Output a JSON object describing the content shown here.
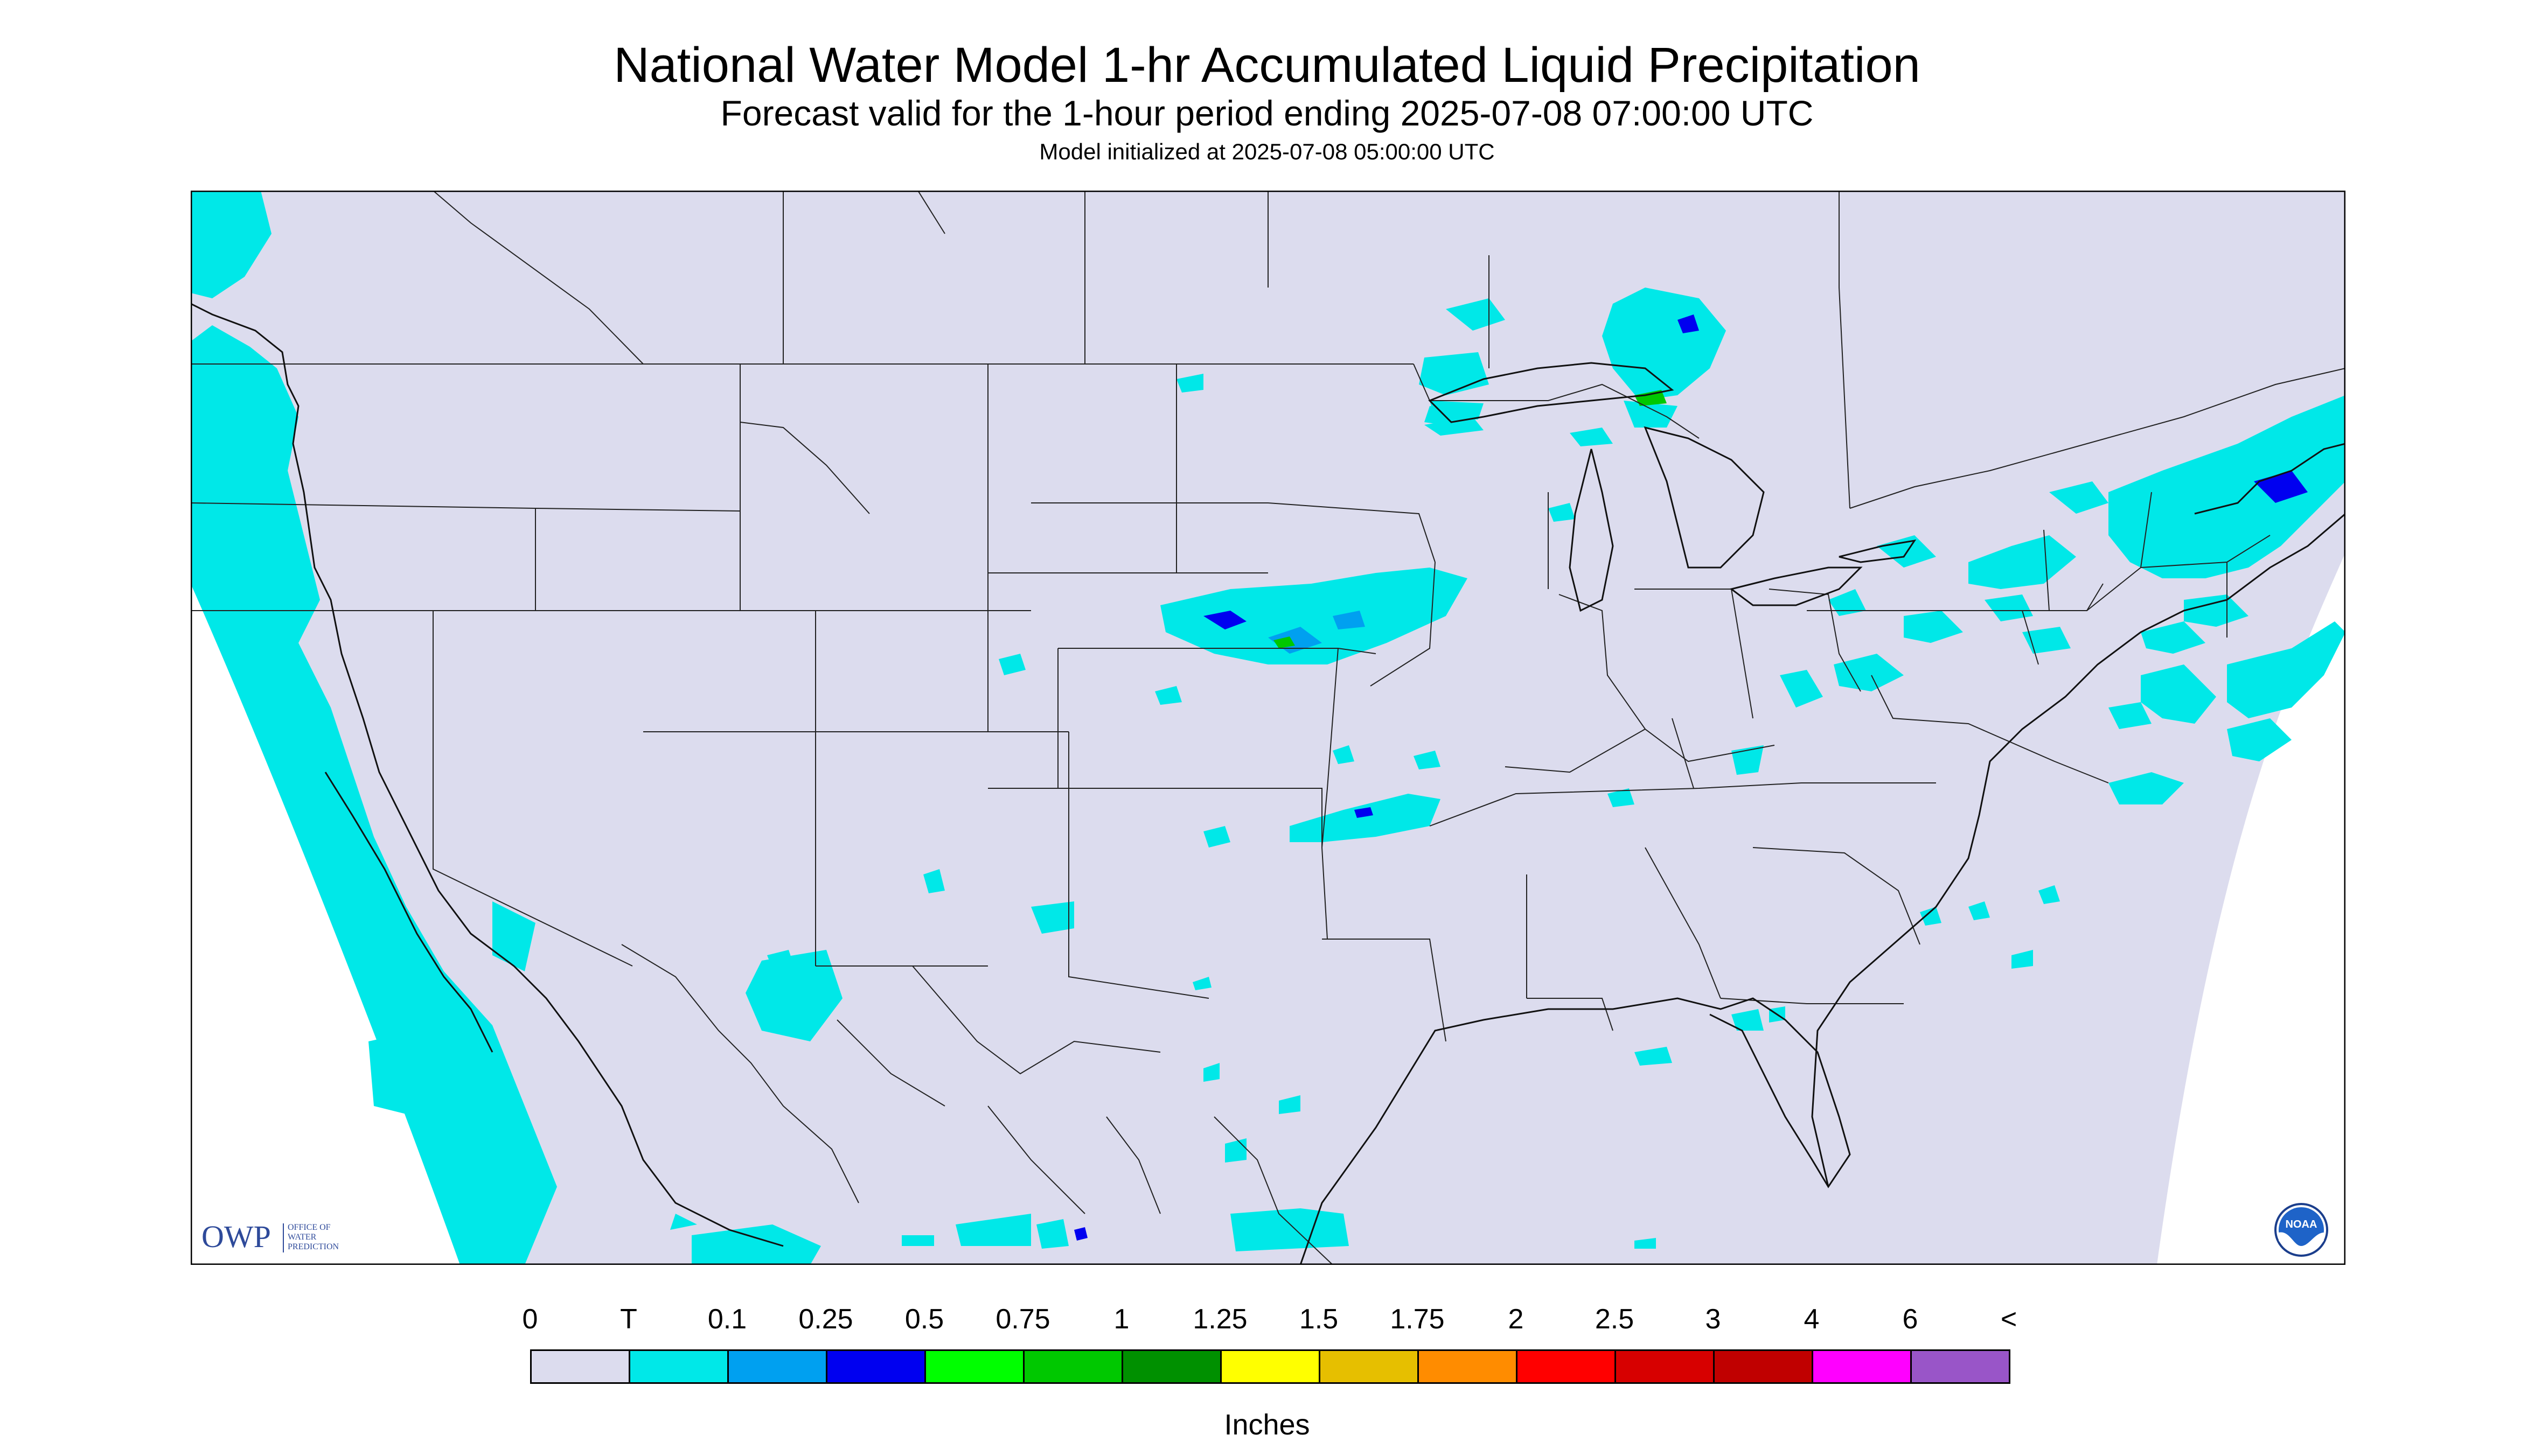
{
  "header": {
    "title": "National Water Model 1-hr Accumulated Liquid Precipitation",
    "subtitle": "Forecast valid for the 1-hour period ending 2025-07-08 07:00:00 UTC",
    "init": "Model initialized at 2025-07-08 05:00:00 UTC"
  },
  "map": {
    "background_color": "#dcdcee",
    "logos": {
      "owp": {
        "abbr": "OWP",
        "line1": "OFFICE OF",
        "line2": "WATER",
        "line3": "PREDICTION"
      },
      "noaa": {
        "text": "NOAA"
      }
    }
  },
  "legend": {
    "labels": [
      "0",
      "T",
      "0.1",
      "0.25",
      "0.5",
      "0.75",
      "1",
      "1.25",
      "1.5",
      "1.75",
      "2",
      "2.5",
      "3",
      "4",
      "6",
      "<"
    ],
    "colors": [
      "#dcdcee",
      "#00e8e8",
      "#00a0f0",
      "#0000f0",
      "#00ff00",
      "#00c800",
      "#009000",
      "#ffff00",
      "#e6bf00",
      "#ff8c00",
      "#ff0000",
      "#d70000",
      "#c00000",
      "#ff00ff",
      "#9955c8"
    ],
    "units": "Inches"
  }
}
